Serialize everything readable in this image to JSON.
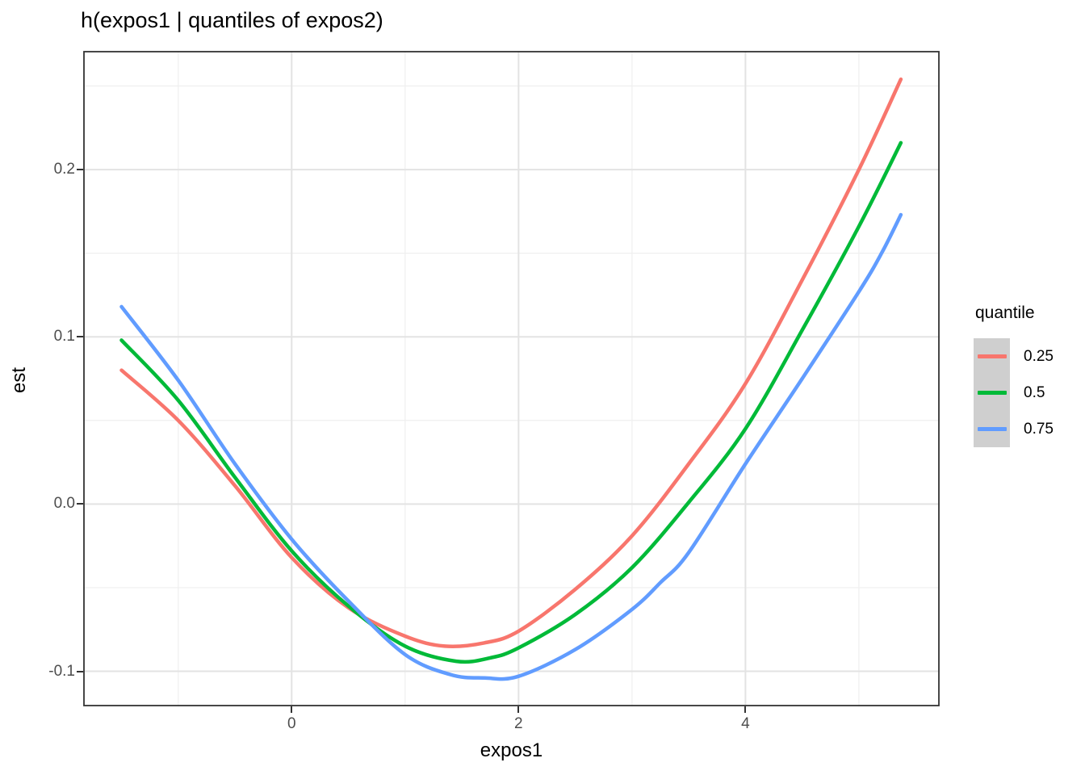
{
  "title": "h(expos1 | quantiles of expos2)",
  "axes": {
    "x": {
      "label": "expos1",
      "major_ticks": [
        {
          "value": 0,
          "label": "0"
        },
        {
          "value": 2,
          "label": "2"
        },
        {
          "value": 4,
          "label": "4"
        }
      ],
      "minor_ticks": [
        -1,
        1,
        3,
        5
      ]
    },
    "y": {
      "label": "est",
      "major_ticks": [
        {
          "value": 0.2,
          "label": "0.2"
        },
        {
          "value": 0.1,
          "label": "0.1"
        },
        {
          "value": 0.0,
          "label": "0.0"
        },
        {
          "value": -0.1,
          "label": "-0.1"
        }
      ],
      "minor_ticks": [
        0.25,
        0.15,
        0.05,
        -0.05
      ]
    }
  },
  "legend": {
    "title": "quantile",
    "items": [
      {
        "label": "0.25",
        "color": "#F8766D"
      },
      {
        "label": "0.5",
        "color": "#00BA38"
      },
      {
        "label": "0.75",
        "color": "#619CFF"
      }
    ]
  },
  "style": {
    "background": "#ffffff",
    "panel_border": "#333333",
    "major_grid": "#e3e3e3",
    "minor_grid": "#efefef",
    "tick_color": "#333333",
    "tick_text_color": "#4d4d4d",
    "legend_key_fill": "#cfcfcf",
    "line_width": 4.5
  },
  "chart_data": {
    "type": "line",
    "title": "h(expos1 | quantiles of expos2)",
    "xlabel": "expos1",
    "ylabel": "est",
    "xlim": [
      -1.838,
      5.712
    ],
    "ylim": [
      -0.121,
      0.271
    ],
    "x_major_gridlines": [
      0,
      2,
      4
    ],
    "x_minor_gridlines": [
      -1,
      1,
      3,
      5
    ],
    "y_major_gridlines": [
      0.2,
      0.1,
      0.0,
      -0.1
    ],
    "y_minor_gridlines": [
      0.25,
      0.15,
      0.05,
      -0.05
    ],
    "grid": true,
    "legend_title": "quantile",
    "legend_position": "right",
    "series": [
      {
        "name": "0.25",
        "color": "#F8766D",
        "points": [
          [
            -1.5,
            0.08
          ],
          [
            -1.0,
            0.05
          ],
          [
            -0.5,
            0.011
          ],
          [
            0,
            -0.032
          ],
          [
            0.5,
            -0.062
          ],
          [
            1.0,
            -0.079
          ],
          [
            1.35,
            -0.085
          ],
          [
            1.7,
            -0.083
          ],
          [
            2.0,
            -0.076
          ],
          [
            2.5,
            -0.051
          ],
          [
            3.0,
            -0.019
          ],
          [
            3.5,
            0.024
          ],
          [
            4.0,
            0.072
          ],
          [
            4.5,
            0.134
          ],
          [
            5.0,
            0.2
          ],
          [
            5.37,
            0.254
          ]
        ]
      },
      {
        "name": "0.5",
        "color": "#00BA38",
        "points": [
          [
            -1.5,
            0.098
          ],
          [
            -1.0,
            0.062
          ],
          [
            -0.5,
            0.016
          ],
          [
            0,
            -0.028
          ],
          [
            0.5,
            -0.061
          ],
          [
            1.0,
            -0.085
          ],
          [
            1.45,
            -0.094
          ],
          [
            1.75,
            -0.092
          ],
          [
            2.0,
            -0.086
          ],
          [
            2.5,
            -0.066
          ],
          [
            3.0,
            -0.038
          ],
          [
            3.5,
            0.001
          ],
          [
            4.0,
            0.045
          ],
          [
            4.5,
            0.104
          ],
          [
            5.0,
            0.166
          ],
          [
            5.37,
            0.216
          ]
        ]
      },
      {
        "name": "0.75",
        "color": "#619CFF",
        "points": [
          [
            -1.5,
            0.118
          ],
          [
            -1.0,
            0.074
          ],
          [
            -0.5,
            0.024
          ],
          [
            0,
            -0.021
          ],
          [
            0.5,
            -0.058
          ],
          [
            1.0,
            -0.09
          ],
          [
            1.4,
            -0.102
          ],
          [
            1.7,
            -0.104
          ],
          [
            2.0,
            -0.103
          ],
          [
            2.5,
            -0.087
          ],
          [
            3.0,
            -0.063
          ],
          [
            3.25,
            -0.047
          ],
          [
            3.5,
            -0.029
          ],
          [
            4.0,
            0.024
          ],
          [
            4.5,
            0.075
          ],
          [
            5.0,
            0.127
          ],
          [
            5.2,
            0.15
          ],
          [
            5.37,
            0.173
          ]
        ]
      }
    ]
  }
}
